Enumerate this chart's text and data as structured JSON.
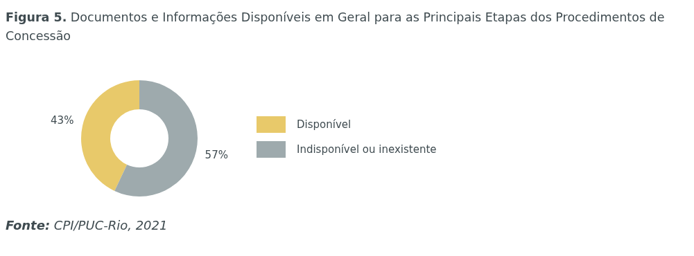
{
  "chart_data": {
    "type": "donut",
    "title": "Figura 5. Documentos e Informações Disponíveis em Geral para as Principais Etapas dos Procedimentos de Concessão",
    "categories": [
      "Disponível",
      "Indisponível ou inexistente"
    ],
    "values": [
      43,
      57
    ],
    "colors": [
      "#e8c96a",
      "#9eaaad"
    ],
    "value_labels": [
      "43%",
      "57%"
    ],
    "legend": "right",
    "annotations": [
      "Fonte: CPI/PUC-Rio, 2021"
    ]
  }
}
